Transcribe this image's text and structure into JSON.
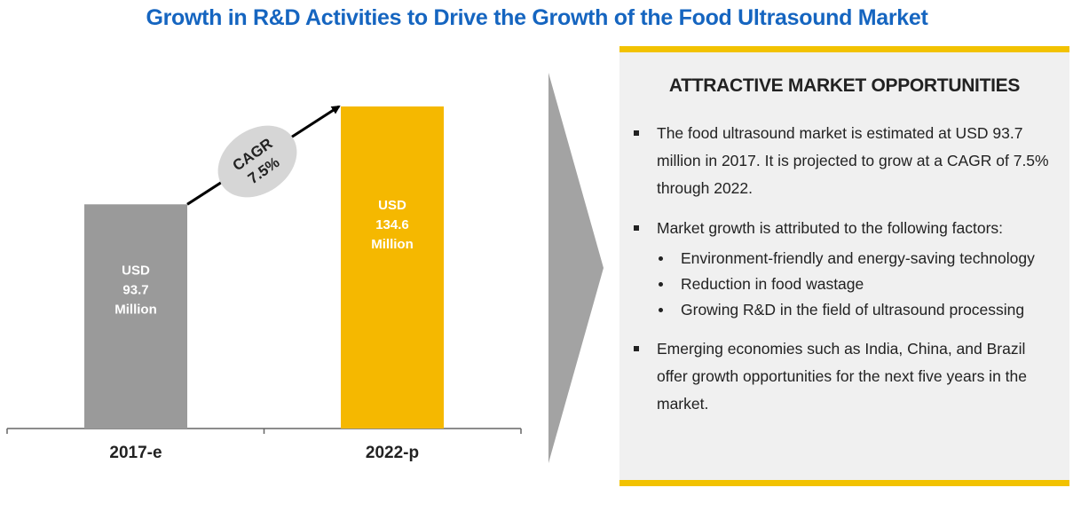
{
  "title": "Growth in R&D Activities to Drive the Growth of the Food Ultrasound Market",
  "colors": {
    "title": "#1565c0",
    "bar_2017": "#9a9a9a",
    "bar_2022": "#f5b800",
    "accent_border": "#f2c200",
    "arrow_shape": "#a3a3a3",
    "cagr_ellipse": "#d6d6d6"
  },
  "chart_data": {
    "type": "bar",
    "categories": [
      "2017-e",
      "2022-p"
    ],
    "values": [
      93.7,
      134.6
    ],
    "unit": "USD Million",
    "bar_labels": [
      [
        "USD",
        "93.7",
        "Million"
      ],
      [
        "USD",
        "134.6",
        "Million"
      ]
    ],
    "cagr_label": [
      "CAGR",
      "7.5%"
    ],
    "title": "",
    "xlabel": "",
    "ylabel": "",
    "ylim": [
      0,
      150
    ]
  },
  "panel": {
    "heading": "ATTRACTIVE MARKET OPPORTUNITIES",
    "bullets": [
      {
        "text": "The food ultrasound market is estimated at USD 93.7 million in 2017. It is projected to grow at a CAGR of 7.5% through 2022."
      },
      {
        "text": "Market growth is attributed to the following factors:",
        "subs": [
          "Environment-friendly and energy-saving technology",
          "Reduction in food wastage",
          "Growing R&D in the field of ultrasound processing"
        ]
      },
      {
        "text": "Emerging economies such as India, China, and Brazil offer growth opportunities for the next five years in the market."
      }
    ]
  }
}
